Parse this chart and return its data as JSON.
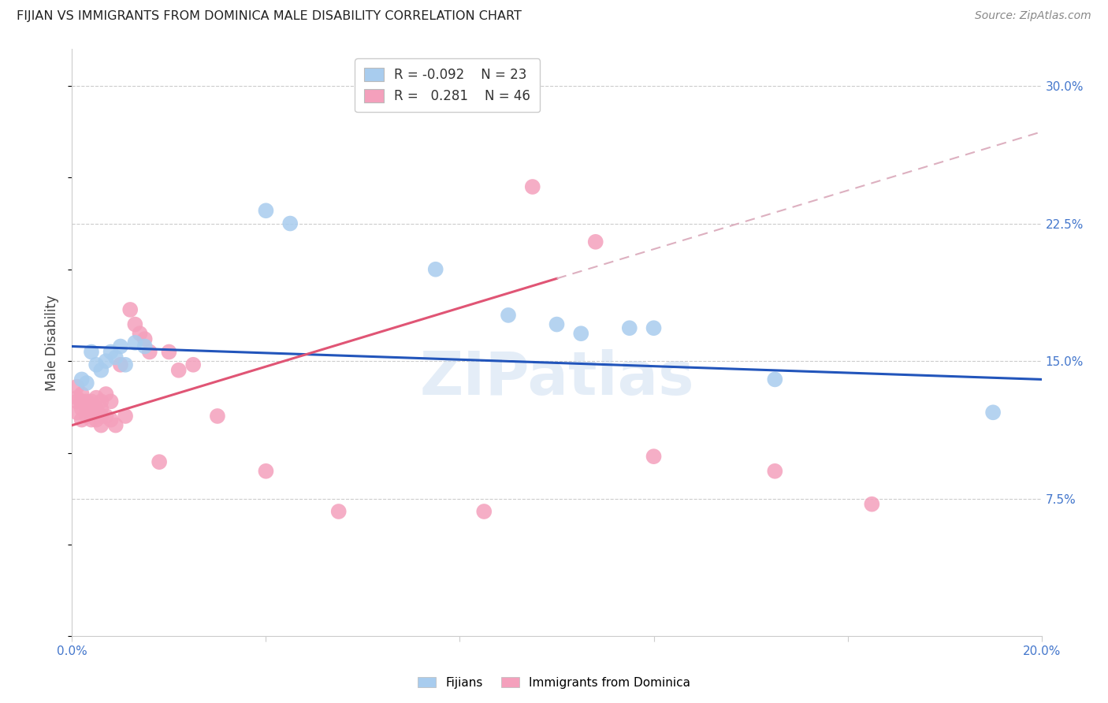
{
  "title": "FIJIAN VS IMMIGRANTS FROM DOMINICA MALE DISABILITY CORRELATION CHART",
  "source": "Source: ZipAtlas.com",
  "ylabel": "Male Disability",
  "xlim": [
    0.0,
    0.2
  ],
  "ylim": [
    0.0,
    0.32
  ],
  "blue_color": "#A8CCEE",
  "pink_color": "#F4A0BC",
  "blue_line_color": "#2255BB",
  "pink_line_color": "#E05575",
  "pink_dashed_color": "#DDB0C0",
  "watermark": "ZIPatlas",
  "fijian_x": [
    0.002,
    0.003,
    0.004,
    0.005,
    0.006,
    0.007,
    0.008,
    0.009,
    0.01,
    0.011,
    0.013,
    0.015,
    0.04,
    0.045,
    0.075,
    0.09,
    0.1,
    0.105,
    0.115,
    0.12,
    0.145,
    0.19
  ],
  "fijian_y": [
    0.14,
    0.138,
    0.155,
    0.148,
    0.145,
    0.15,
    0.155,
    0.152,
    0.158,
    0.148,
    0.16,
    0.158,
    0.232,
    0.225,
    0.2,
    0.175,
    0.17,
    0.165,
    0.168,
    0.168,
    0.14,
    0.122
  ],
  "dominica_x": [
    0.001,
    0.001,
    0.001,
    0.001,
    0.002,
    0.002,
    0.002,
    0.002,
    0.003,
    0.003,
    0.003,
    0.004,
    0.004,
    0.004,
    0.005,
    0.005,
    0.005,
    0.006,
    0.006,
    0.006,
    0.006,
    0.007,
    0.007,
    0.008,
    0.008,
    0.009,
    0.01,
    0.011,
    0.012,
    0.013,
    0.014,
    0.015,
    0.016,
    0.018,
    0.02,
    0.022,
    0.025,
    0.03,
    0.04,
    0.055,
    0.085,
    0.095,
    0.108,
    0.12,
    0.145,
    0.165
  ],
  "dominica_y": [
    0.13,
    0.136,
    0.128,
    0.122,
    0.132,
    0.128,
    0.124,
    0.118,
    0.128,
    0.124,
    0.12,
    0.128,
    0.122,
    0.118,
    0.13,
    0.124,
    0.118,
    0.128,
    0.124,
    0.12,
    0.115,
    0.132,
    0.12,
    0.128,
    0.118,
    0.115,
    0.148,
    0.12,
    0.178,
    0.17,
    0.165,
    0.162,
    0.155,
    0.095,
    0.155,
    0.145,
    0.148,
    0.12,
    0.09,
    0.068,
    0.068,
    0.245,
    0.215,
    0.098,
    0.09,
    0.072
  ]
}
